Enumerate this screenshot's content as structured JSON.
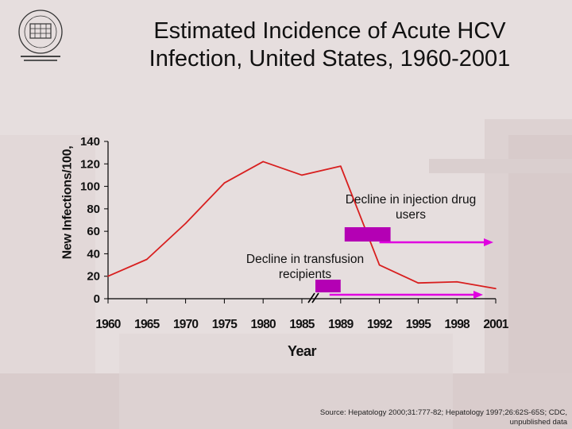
{
  "title": "Estimated Incidence of Acute HCV Infection, United States, 1960-2001",
  "source": "Source: Hepatology 2000;31:777-82; Hepatology 1997;26:62S-65S; CDC, unpublished data",
  "colors": {
    "line": "#d81f1f",
    "bar": "#b400b4",
    "arrow": "#e000e0",
    "axis": "#000000"
  },
  "chart_data": {
    "type": "line",
    "title": "Estimated Incidence of Acute HCV Infection, United States, 1960-2001",
    "ylabel": "New Infections/100,",
    "xlabel": "Year",
    "ylim": [
      0,
      140
    ],
    "yticks": [
      0,
      20,
      40,
      60,
      80,
      100,
      120,
      140
    ],
    "categories": [
      "1960",
      "1965",
      "1970",
      "1975",
      "1980",
      "1985",
      "1989",
      "1992",
      "1995",
      "1998",
      "2001"
    ],
    "series": [
      {
        "values": [
          20,
          35,
          67,
          103,
          122,
          110,
          118,
          30,
          14,
          15,
          9
        ]
      }
    ],
    "legend": "none",
    "grid": false,
    "annotations": [
      {
        "text": "Decline in injection drug users",
        "bar_start": "1989",
        "bar_end": "1992",
        "arrow_to": "2001"
      },
      {
        "text": "Decline in transfusion recipients",
        "bar_start": "1985",
        "bar_end": "1989",
        "arrow_to": "2001"
      }
    ],
    "axis_break": "1985"
  }
}
